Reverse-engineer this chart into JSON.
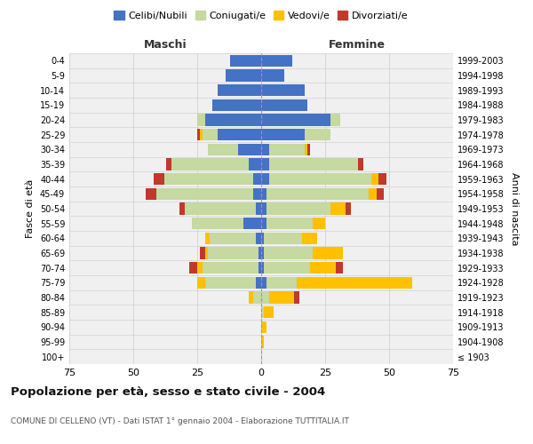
{
  "age_groups": [
    "100+",
    "95-99",
    "90-94",
    "85-89",
    "80-84",
    "75-79",
    "70-74",
    "65-69",
    "60-64",
    "55-59",
    "50-54",
    "45-49",
    "40-44",
    "35-39",
    "30-34",
    "25-29",
    "20-24",
    "15-19",
    "10-14",
    "5-9",
    "0-4"
  ],
  "birth_years": [
    "≤ 1903",
    "1904-1908",
    "1909-1913",
    "1914-1918",
    "1919-1923",
    "1924-1928",
    "1929-1933",
    "1934-1938",
    "1939-1943",
    "1944-1948",
    "1949-1953",
    "1954-1958",
    "1959-1963",
    "1964-1968",
    "1969-1973",
    "1974-1978",
    "1979-1983",
    "1984-1988",
    "1989-1993",
    "1994-1998",
    "1999-2003"
  ],
  "maschi": {
    "celibi": [
      0,
      0,
      0,
      0,
      0,
      2,
      1,
      1,
      2,
      7,
      2,
      3,
      3,
      5,
      9,
      17,
      22,
      19,
      17,
      14,
      12
    ],
    "coniugati": [
      0,
      0,
      0,
      0,
      3,
      20,
      22,
      20,
      18,
      20,
      28,
      38,
      35,
      30,
      12,
      6,
      3,
      0,
      0,
      0,
      0
    ],
    "vedovi": [
      0,
      0,
      0,
      0,
      2,
      3,
      2,
      1,
      2,
      0,
      0,
      0,
      0,
      0,
      0,
      1,
      0,
      0,
      0,
      0,
      0
    ],
    "divorziati": [
      0,
      0,
      0,
      0,
      0,
      0,
      3,
      2,
      0,
      0,
      2,
      4,
      4,
      2,
      0,
      1,
      0,
      0,
      0,
      0,
      0
    ]
  },
  "femmine": {
    "nubili": [
      0,
      0,
      0,
      0,
      0,
      2,
      1,
      1,
      1,
      2,
      2,
      2,
      3,
      3,
      3,
      17,
      27,
      18,
      17,
      9,
      12
    ],
    "coniugate": [
      0,
      0,
      0,
      1,
      3,
      12,
      18,
      19,
      15,
      18,
      25,
      40,
      40,
      35,
      14,
      10,
      4,
      0,
      0,
      0,
      0
    ],
    "vedove": [
      0,
      1,
      2,
      4,
      10,
      45,
      10,
      12,
      6,
      5,
      6,
      3,
      3,
      0,
      1,
      0,
      0,
      0,
      0,
      0,
      0
    ],
    "divorziate": [
      0,
      0,
      0,
      0,
      2,
      0,
      3,
      0,
      0,
      0,
      2,
      3,
      3,
      2,
      1,
      0,
      0,
      0,
      0,
      0,
      0
    ]
  },
  "colors": {
    "celibi": "#4472c4",
    "coniugati": "#c5d9a0",
    "vedovi": "#ffc000",
    "divorziati": "#c0392b"
  },
  "xlim": 75,
  "title": "Popolazione per età, sesso e stato civile - 2004",
  "subtitle": "COMUNE DI CELLENO (VT) - Dati ISTAT 1° gennaio 2004 - Elaborazione TUTTITALIA.IT",
  "ylabel_left": "Fasce di età",
  "ylabel_right": "Anni di nascita",
  "xlabel_left": "Maschi",
  "xlabel_right": "Femmine"
}
